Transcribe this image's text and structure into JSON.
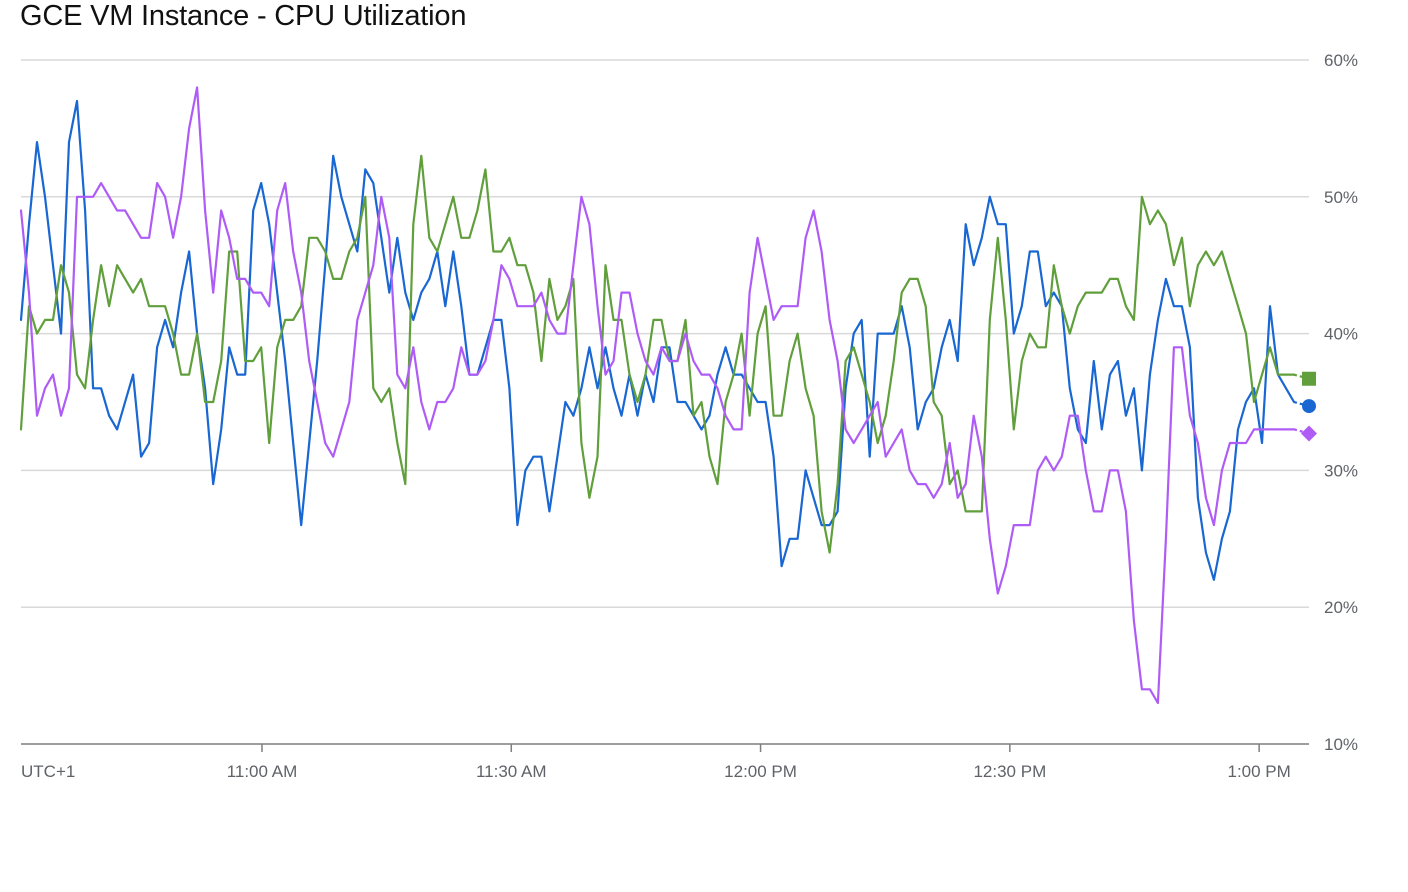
{
  "chart_data": {
    "type": "line",
    "title": "GCE VM Instance - CPU Utilization",
    "timezone_label": "UTC+1",
    "xlabel": "",
    "ylabel": "",
    "ylim": [
      10,
      60
    ],
    "yticks": [
      "10%",
      "20%",
      "30%",
      "40%",
      "50%",
      "60%"
    ],
    "xticks": [
      "11:00 AM",
      "11:30 AM",
      "12:00 PM",
      "12:30 PM",
      "1:00 PM"
    ],
    "x_range": [
      "10:31",
      "1:06 PM"
    ],
    "sample_interval_minutes": 1,
    "grid": true,
    "legend": "none",
    "series": [
      {
        "color": "#1967d2",
        "marker": "circle",
        "last_value": 34.7,
        "values": [
          41,
          48,
          54,
          50,
          45,
          40,
          54,
          57,
          49,
          36,
          36,
          34,
          33,
          35,
          37,
          31,
          32,
          39,
          41,
          39,
          43,
          46,
          40,
          36,
          29,
          33,
          39,
          37,
          37,
          49,
          51,
          48,
          43,
          38,
          32,
          26,
          32,
          38,
          45,
          53,
          50,
          48,
          46,
          52,
          51,
          47,
          43,
          47,
          43,
          41,
          43,
          44,
          46,
          42,
          46,
          42,
          37,
          37,
          39,
          41,
          41,
          36,
          26,
          30,
          31,
          31,
          27,
          31,
          35,
          34,
          36,
          39,
          36,
          39,
          36,
          34,
          37,
          34,
          37,
          35,
          39,
          39,
          35,
          35,
          34,
          33,
          34,
          37,
          39,
          37,
          37,
          36,
          35,
          35,
          31,
          23,
          25,
          25,
          30,
          28,
          26,
          26,
          27,
          36,
          40,
          41,
          31,
          40,
          40,
          40,
          42,
          39,
          33,
          35,
          36,
          39,
          41,
          38,
          48,
          45,
          47,
          50,
          48,
          48,
          40,
          42,
          46,
          46,
          42,
          43,
          42,
          36,
          33,
          32,
          38,
          33,
          37,
          38,
          34,
          36,
          30,
          37,
          41,
          44,
          42,
          42,
          39,
          28,
          24,
          22,
          25,
          27,
          33,
          35,
          36,
          32,
          42,
          37,
          36,
          35
        ],
        "marker_value": 34.7
      },
      {
        "color": "#609f3c",
        "marker": "square",
        "last_value": 36.7,
        "values": [
          33,
          42,
          40,
          41,
          41,
          45,
          43,
          37,
          36,
          41,
          45,
          42,
          45,
          44,
          43,
          44,
          42,
          42,
          42,
          40,
          37,
          37,
          40,
          35,
          35,
          38,
          46,
          46,
          38,
          38,
          39,
          32,
          39,
          41,
          41,
          42,
          47,
          47,
          46,
          44,
          44,
          46,
          47,
          50,
          36,
          35,
          36,
          32,
          29,
          48,
          53,
          47,
          46,
          48,
          50,
          47,
          47,
          49,
          52,
          46,
          46,
          47,
          45,
          45,
          43,
          38,
          44,
          41,
          42,
          44,
          32,
          28,
          31,
          45,
          41,
          41,
          37,
          35,
          37,
          41,
          41,
          38,
          38,
          41,
          34,
          35,
          31,
          29,
          35,
          37,
          40,
          34,
          40,
          42,
          34,
          34,
          38,
          40,
          36,
          34,
          27,
          24,
          29,
          38,
          39,
          37,
          35,
          32,
          34,
          38,
          43,
          44,
          44,
          42,
          35,
          34,
          29,
          30,
          27,
          27,
          27,
          41,
          47,
          41,
          33,
          38,
          40,
          39,
          39,
          45,
          42,
          40,
          42,
          43,
          43,
          43,
          44,
          44,
          42,
          41,
          50,
          48,
          49,
          48,
          45,
          47,
          42,
          45,
          46,
          45,
          46,
          44,
          42,
          40,
          35,
          37,
          39,
          37,
          37,
          37
        ],
        "marker_value": 36.7
      },
      {
        "color": "#af5cf7",
        "marker": "diamond",
        "last_value": 32.7,
        "values": [
          49,
          43,
          34,
          36,
          37,
          34,
          36,
          50,
          50,
          50,
          51,
          50,
          49,
          49,
          48,
          47,
          47,
          51,
          50,
          47,
          50,
          55,
          58,
          49,
          43,
          49,
          47,
          44,
          44,
          43,
          43,
          42,
          49,
          51,
          46,
          43,
          38,
          35,
          32,
          31,
          33,
          35,
          41,
          43,
          45,
          50,
          47,
          37,
          36,
          39,
          35,
          33,
          35,
          35,
          36,
          39,
          37,
          37,
          38,
          41,
          45,
          44,
          42,
          42,
          42,
          43,
          41,
          40,
          40,
          45,
          50,
          48,
          42,
          37,
          38,
          43,
          43,
          40,
          38,
          37,
          39,
          38,
          38,
          40,
          38,
          37,
          37,
          36,
          34,
          33,
          33,
          43,
          47,
          44,
          41,
          42,
          42,
          42,
          47,
          49,
          46,
          41,
          38,
          33,
          32,
          33,
          34,
          35,
          31,
          32,
          33,
          30,
          29,
          29,
          28,
          29,
          32,
          28,
          29,
          34,
          31,
          25,
          21,
          23,
          26,
          26,
          26,
          30,
          31,
          30,
          31,
          34,
          34,
          30,
          27,
          27,
          30,
          30,
          27,
          19,
          14,
          14,
          13,
          25,
          39,
          39,
          34,
          32,
          28,
          26,
          30,
          32,
          32,
          32,
          33,
          33,
          33,
          33,
          33,
          33
        ],
        "marker_value": 32.7
      }
    ]
  }
}
